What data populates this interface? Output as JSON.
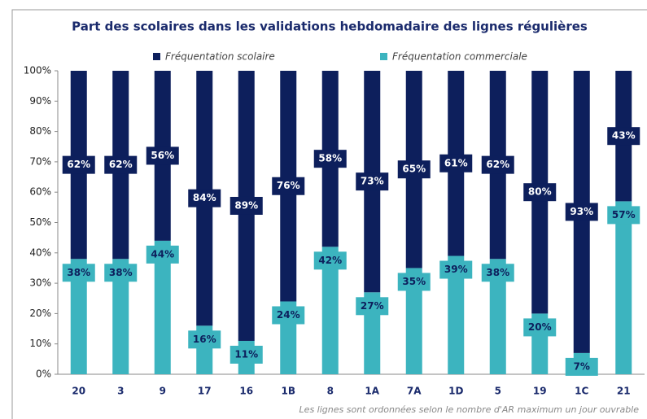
{
  "chart_data": {
    "type": "stacked_bar",
    "title": "Part des scolaires dans les validations hebdomadaire des lignes régulières",
    "footnote": "Les lignes sont ordonnées selon le nombre d'AR maximum un jour ouvrable",
    "categories": [
      "20",
      "3",
      "9",
      "17",
      "16",
      "1B",
      "8",
      "1A",
      "7A",
      "1D",
      "5",
      "19",
      "1C",
      "21"
    ],
    "series": [
      {
        "name": "Fréquentation commerciale",
        "color": "#3cb4bf",
        "values": [
          38,
          38,
          44,
          16,
          11,
          24,
          42,
          27,
          35,
          39,
          38,
          20,
          7,
          57
        ],
        "value_labels": [
          "38%",
          "38%",
          "44%",
          "16%",
          "11%",
          "24%",
          "42%",
          "27%",
          "35%",
          "39%",
          "38%",
          "20%",
          "7%",
          "57%"
        ]
      },
      {
        "name": "Fréquentation scolaire",
        "color": "#0d1f5c",
        "values": [
          62,
          62,
          56,
          84,
          89,
          76,
          58,
          73,
          65,
          61,
          62,
          80,
          93,
          43
        ],
        "value_labels": [
          "62%",
          "62%",
          "56%",
          "84%",
          "89%",
          "76%",
          "58%",
          "73%",
          "65%",
          "61%",
          "62%",
          "80%",
          "93%",
          "43%"
        ]
      }
    ],
    "ylim": [
      0,
      100
    ],
    "yticks": [
      {
        "value": 0,
        "label": "0%"
      },
      {
        "value": 10,
        "label": "10%"
      },
      {
        "value": 20,
        "label": "20%"
      },
      {
        "value": 30,
        "label": "30%"
      },
      {
        "value": 40,
        "label": "40%"
      },
      {
        "value": 50,
        "label": "50%"
      },
      {
        "value": 60,
        "label": "60%"
      },
      {
        "value": 70,
        "label": "70%"
      },
      {
        "value": 80,
        "label": "80%"
      },
      {
        "value": 90,
        "label": "90%"
      },
      {
        "value": 100,
        "label": "100%"
      }
    ],
    "grid": false,
    "legend": "top"
  }
}
